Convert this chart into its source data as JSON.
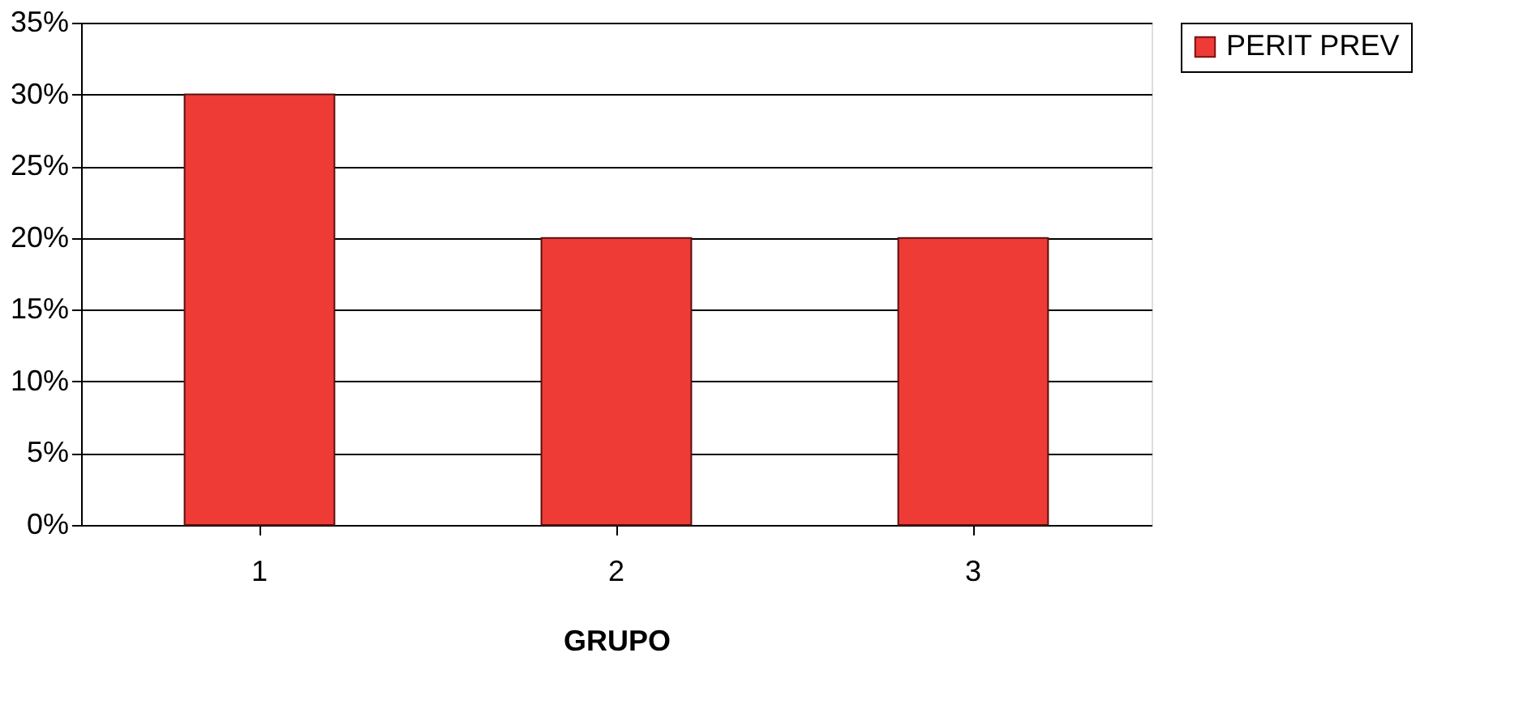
{
  "chart_data": {
    "type": "bar",
    "xlabel": "GRUPO",
    "categories": [
      "1",
      "2",
      "3"
    ],
    "series": [
      {
        "name": "PERIT PREV",
        "color": "#ee3b36",
        "values": [
          30,
          20,
          20
        ]
      }
    ],
    "ylim": [
      0,
      35
    ],
    "yticks": [
      {
        "value": 0,
        "label": "0%"
      },
      {
        "value": 5,
        "label": "5%"
      },
      {
        "value": 10,
        "label": "10%"
      },
      {
        "value": 15,
        "label": "15%"
      },
      {
        "value": 20,
        "label": "20%"
      },
      {
        "value": 25,
        "label": "25%"
      },
      {
        "value": 30,
        "label": "30%"
      },
      {
        "value": 35,
        "label": "35%"
      }
    ],
    "grid": "y",
    "legend": "right"
  }
}
